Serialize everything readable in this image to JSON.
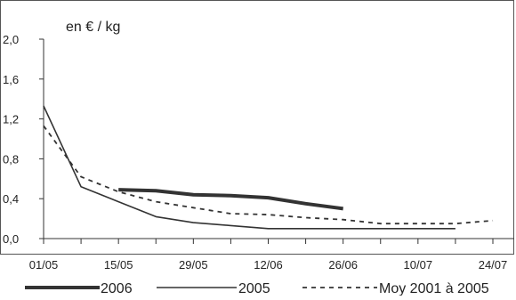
{
  "chart_data": {
    "type": "line",
    "unit_label": "en € / kg",
    "y_ticks": [
      "0,0",
      "0,4",
      "0,8",
      "1,2",
      "1,6",
      "2,0"
    ],
    "ylim": [
      0,
      2.0
    ],
    "x_tick_labels": [
      "01/05",
      "15/05",
      "29/05",
      "12/06",
      "26/06",
      "10/07",
      "24/07"
    ],
    "x_tick_days": [
      0,
      14,
      28,
      42,
      56,
      70,
      84
    ],
    "xlim": [
      0,
      84
    ],
    "grid": false,
    "legend_position": "bottom",
    "series": [
      {
        "name": "2006",
        "style": "thick",
        "color": "#333333",
        "points": [
          [
            14,
            0.49
          ],
          [
            21,
            0.48
          ],
          [
            28,
            0.44
          ],
          [
            35,
            0.43
          ],
          [
            42,
            0.41
          ],
          [
            49,
            0.35
          ],
          [
            56,
            0.3
          ]
        ]
      },
      {
        "name": "2005",
        "style": "thin",
        "color": "#333333",
        "points": [
          [
            0,
            1.33
          ],
          [
            7,
            0.52
          ],
          [
            14,
            0.37
          ],
          [
            21,
            0.22
          ],
          [
            28,
            0.16
          ],
          [
            35,
            0.13
          ],
          [
            42,
            0.1
          ],
          [
            49,
            0.1
          ],
          [
            56,
            0.1
          ],
          [
            63,
            0.1
          ],
          [
            70,
            0.1
          ],
          [
            77,
            0.1
          ]
        ]
      },
      {
        "name": "Moy 2001 à 2005",
        "style": "dashed",
        "color": "#333333",
        "points": [
          [
            0,
            1.13
          ],
          [
            7,
            0.62
          ],
          [
            14,
            0.47
          ],
          [
            21,
            0.37
          ],
          [
            28,
            0.31
          ],
          [
            35,
            0.25
          ],
          [
            42,
            0.24
          ],
          [
            49,
            0.21
          ],
          [
            56,
            0.19
          ],
          [
            63,
            0.15
          ],
          [
            70,
            0.15
          ],
          [
            77,
            0.15
          ],
          [
            84,
            0.18
          ]
        ]
      }
    ]
  }
}
